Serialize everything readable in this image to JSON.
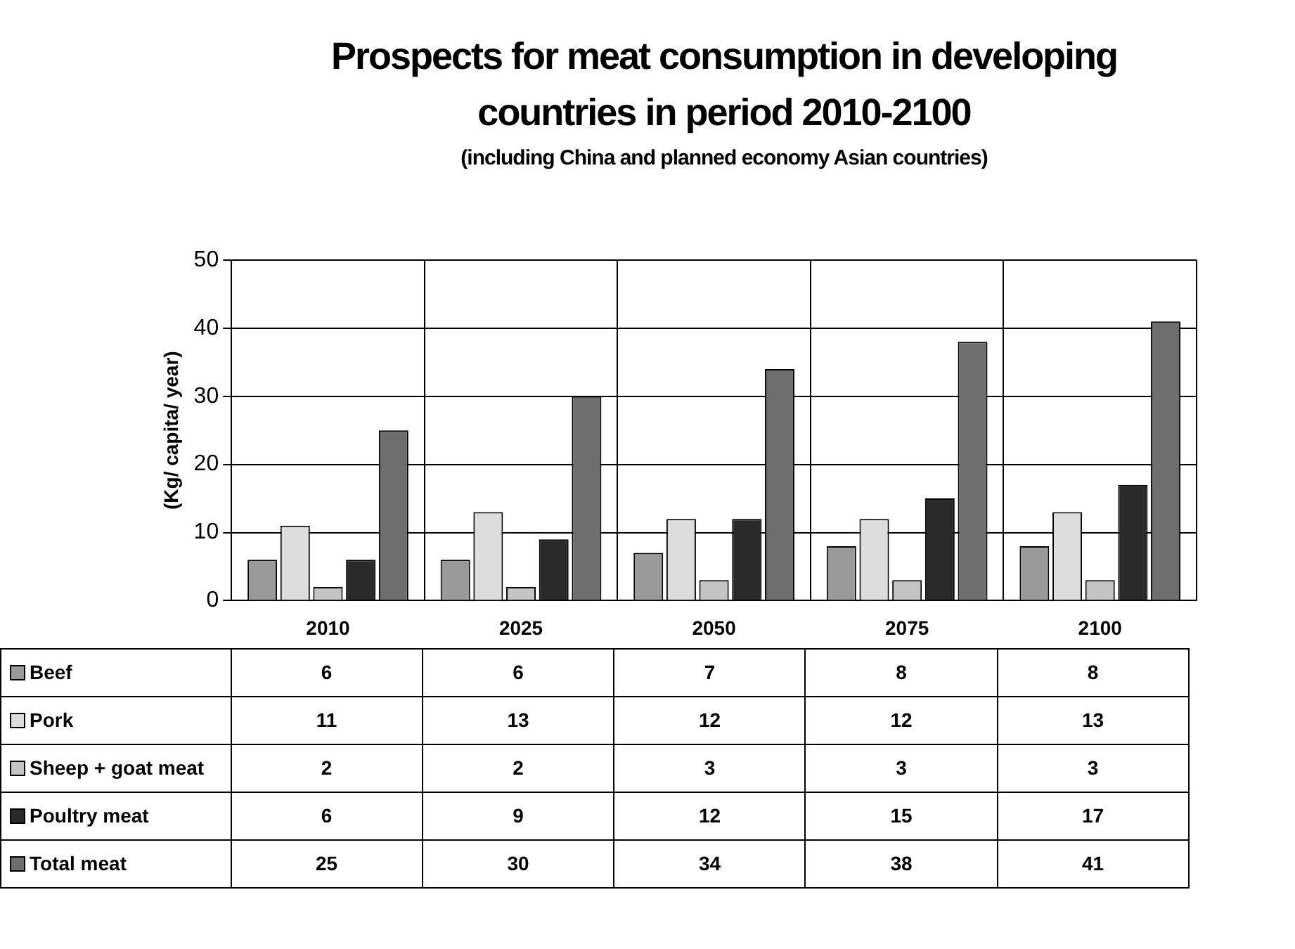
{
  "chart_data": {
    "type": "bar",
    "title": "Prospects for meat consumption in developing countries in period 2010-2100",
    "subtitle": "(including China and planned economy Asian countries)",
    "ylabel": "(Kg/ capita/ year)",
    "categories": [
      "2010",
      "2025",
      "2050",
      "2075",
      "2100"
    ],
    "series": [
      {
        "name": "Beef",
        "color": "#9a9a9a",
        "values": [
          6,
          6,
          7,
          8,
          8
        ]
      },
      {
        "name": "Pork",
        "color": "#dcdcdc",
        "values": [
          11,
          13,
          12,
          12,
          13
        ]
      },
      {
        "name": "Sheep + goat meat",
        "color": "#c4c4c4",
        "values": [
          2,
          2,
          3,
          3,
          3
        ]
      },
      {
        "name": "Poultry meat",
        "color": "#2a2a2a",
        "values": [
          6,
          9,
          12,
          15,
          17
        ]
      },
      {
        "name": "Total meat",
        "color": "#6e6e6e",
        "values": [
          25,
          30,
          34,
          38,
          41
        ]
      }
    ],
    "ylim": [
      0,
      50
    ],
    "yticks": [
      0,
      10,
      20,
      30,
      40,
      50
    ],
    "grid": true,
    "legend": "bottom",
    "data_labels": true
  }
}
